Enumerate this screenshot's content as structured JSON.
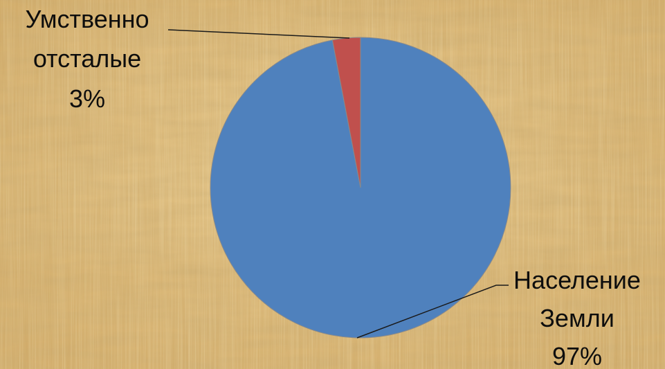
{
  "chart_data": {
    "type": "pie",
    "slices": [
      {
        "label_lines": [
          "Население",
          "Земли"
        ],
        "value": 97,
        "value_label": "97%",
        "color": "#4f81bd"
      },
      {
        "label_lines": [
          "Умственно",
          "отсталые"
        ],
        "value": 3,
        "value_label": "3%",
        "color": "#c0504d"
      }
    ],
    "slice_edge_color": "#8a8a8a",
    "leader_line_color": "#1a1a1a",
    "legend": "none"
  },
  "background": {
    "style": "parchment-papyrus",
    "base_color": "#d9b77a"
  }
}
